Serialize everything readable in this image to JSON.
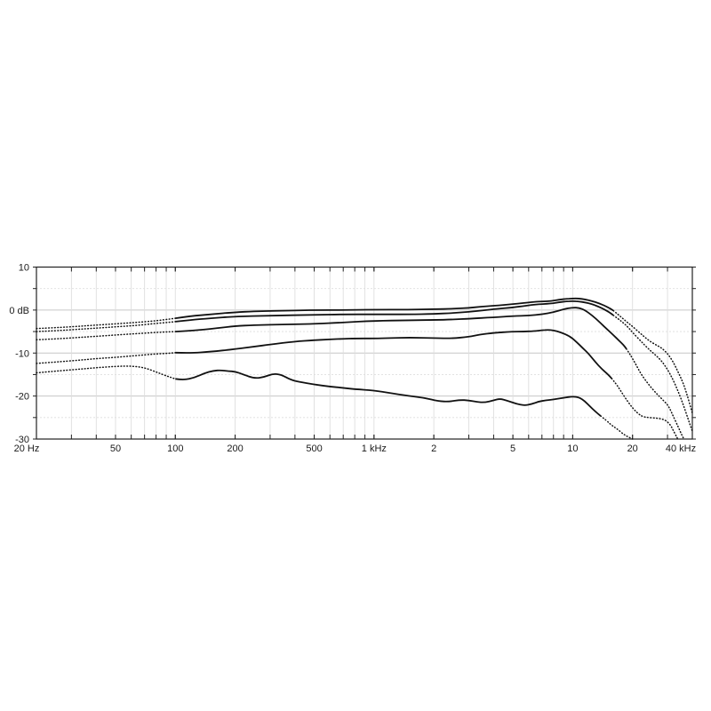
{
  "chart_data": {
    "type": "line",
    "title": "",
    "xlabel": "",
    "ylabel": "",
    "x_axis": {
      "scale": "log",
      "min_hz": 20,
      "max_hz": 40000,
      "ticks": [
        {
          "hz": 20,
          "label": "20 Hz"
        },
        {
          "hz": 50,
          "label": "50"
        },
        {
          "hz": 100,
          "label": "100"
        },
        {
          "hz": 200,
          "label": "200"
        },
        {
          "hz": 500,
          "label": "500"
        },
        {
          "hz": 1000,
          "label": "1 kHz"
        },
        {
          "hz": 2000,
          "label": "2"
        },
        {
          "hz": 5000,
          "label": "5"
        },
        {
          "hz": 10000,
          "label": "10"
        },
        {
          "hz": 20000,
          "label": "20"
        },
        {
          "hz": 40000,
          "label": "40 kHz"
        }
      ]
    },
    "y_axis": {
      "scale": "linear",
      "min_db": -30,
      "max_db": 10,
      "major_ticks": [
        {
          "db": 10,
          "label": "10"
        },
        {
          "db": 0,
          "label": "0 dB"
        },
        {
          "db": -10,
          "label": "-10"
        },
        {
          "db": -20,
          "label": "-20"
        },
        {
          "db": -30,
          "label": "-30"
        }
      ],
      "minor_ticks_db": [
        5,
        -5,
        -15,
        -25
      ]
    },
    "grid": true,
    "legend": "none",
    "line_color": "#111111",
    "grid_major_color": "#c6c6c6",
    "grid_minor_color": "#dedede",
    "note_line_style": "curves are dotted below ~90 Hz and above ~14-19 kHz, solid in between",
    "series": [
      {
        "id": "curve-1",
        "solid_from_hz": 95,
        "solid_to_hz": 16000,
        "points": [
          [
            20,
            -4.3
          ],
          [
            25,
            -4.1
          ],
          [
            32,
            -3.8
          ],
          [
            40,
            -3.5
          ],
          [
            50,
            -3.2
          ],
          [
            63,
            -2.9
          ],
          [
            80,
            -2.5
          ],
          [
            90,
            -2.2
          ],
          [
            100,
            -1.9
          ],
          [
            120,
            -1.4
          ],
          [
            150,
            -1.0
          ],
          [
            200,
            -0.5
          ],
          [
            250,
            -0.3
          ],
          [
            300,
            -0.2
          ],
          [
            400,
            -0.1
          ],
          [
            500,
            0
          ],
          [
            700,
            0
          ],
          [
            1000,
            0.1
          ],
          [
            1500,
            0.1
          ],
          [
            2000,
            0.2
          ],
          [
            2500,
            0.3
          ],
          [
            3000,
            0.5
          ],
          [
            3500,
            0.8
          ],
          [
            4000,
            1.0
          ],
          [
            4500,
            1.2
          ],
          [
            5000,
            1.4
          ],
          [
            5600,
            1.6
          ],
          [
            6400,
            1.9
          ],
          [
            7000,
            2.0
          ],
          [
            7800,
            2.1
          ],
          [
            8500,
            2.4
          ],
          [
            9200,
            2.6
          ],
          [
            10000,
            2.7
          ],
          [
            10700,
            2.7
          ],
          [
            11500,
            2.5
          ],
          [
            12500,
            2.1
          ],
          [
            13500,
            1.6
          ],
          [
            14500,
            1.0
          ],
          [
            15500,
            0.3
          ],
          [
            16000,
            -0.1
          ],
          [
            17000,
            -1.1
          ],
          [
            18000,
            -2.1
          ],
          [
            19000,
            -3.0
          ],
          [
            20000,
            -3.8
          ],
          [
            22000,
            -5.5
          ],
          [
            24000,
            -7.0
          ],
          [
            26000,
            -8.0
          ],
          [
            28000,
            -8.8
          ],
          [
            30000,
            -10.1
          ],
          [
            32000,
            -12.0
          ],
          [
            34000,
            -14.5
          ],
          [
            36000,
            -17.0
          ],
          [
            38000,
            -20.3
          ],
          [
            40000,
            -24.0
          ]
        ]
      },
      {
        "id": "curve-2",
        "solid_from_hz": 95,
        "solid_to_hz": 16000,
        "points": [
          [
            20,
            -5.0
          ],
          [
            25,
            -4.8
          ],
          [
            32,
            -4.5
          ],
          [
            40,
            -4.2
          ],
          [
            50,
            -3.9
          ],
          [
            63,
            -3.6
          ],
          [
            80,
            -3.1
          ],
          [
            90,
            -2.9
          ],
          [
            100,
            -2.7
          ],
          [
            120,
            -2.3
          ],
          [
            150,
            -1.9
          ],
          [
            200,
            -1.5
          ],
          [
            300,
            -1.3
          ],
          [
            500,
            -1.1
          ],
          [
            700,
            -1.0
          ],
          [
            1000,
            -1.0
          ],
          [
            1500,
            -1.0
          ],
          [
            2000,
            -0.9
          ],
          [
            2500,
            -0.7
          ],
          [
            3000,
            -0.4
          ],
          [
            3500,
            -0.1
          ],
          [
            4000,
            0.2
          ],
          [
            5000,
            0.6
          ],
          [
            5600,
            0.9
          ],
          [
            6400,
            1.3
          ],
          [
            7800,
            1.5
          ],
          [
            8500,
            1.8
          ],
          [
            9200,
            2.0
          ],
          [
            10000,
            2.1
          ],
          [
            10700,
            2.0
          ],
          [
            11500,
            1.8
          ],
          [
            12500,
            1.4
          ],
          [
            13500,
            0.8
          ],
          [
            14500,
            0.1
          ],
          [
            15500,
            -0.7
          ],
          [
            16000,
            -1.2
          ],
          [
            17000,
            -2.1
          ],
          [
            18000,
            -3.0
          ],
          [
            19000,
            -4.0
          ],
          [
            20000,
            -5.2
          ],
          [
            22000,
            -7.2
          ],
          [
            24000,
            -9.0
          ],
          [
            26000,
            -10.4
          ],
          [
            28000,
            -11.8
          ],
          [
            30000,
            -13.8
          ],
          [
            32000,
            -16.2
          ],
          [
            34000,
            -19.0
          ],
          [
            36000,
            -22.0
          ],
          [
            38000,
            -25.2
          ],
          [
            40000,
            -28.2
          ]
        ]
      },
      {
        "id": "curve-3",
        "solid_from_hz": 95,
        "solid_to_hz": 18600,
        "points": [
          [
            20,
            -6.9
          ],
          [
            25,
            -6.7
          ],
          [
            32,
            -6.4
          ],
          [
            40,
            -6.1
          ],
          [
            50,
            -5.8
          ],
          [
            63,
            -5.5
          ],
          [
            80,
            -5.2
          ],
          [
            90,
            -5.1
          ],
          [
            100,
            -5.0
          ],
          [
            120,
            -4.8
          ],
          [
            150,
            -4.4
          ],
          [
            200,
            -3.7
          ],
          [
            250,
            -3.5
          ],
          [
            300,
            -3.4
          ],
          [
            400,
            -3.3
          ],
          [
            500,
            -3.2
          ],
          [
            700,
            -2.9
          ],
          [
            1000,
            -2.5
          ],
          [
            1500,
            -2.4
          ],
          [
            2000,
            -2.3
          ],
          [
            2500,
            -2.2
          ],
          [
            3000,
            -2.0
          ],
          [
            4000,
            -1.7
          ],
          [
            5000,
            -1.4
          ],
          [
            6000,
            -1.3
          ],
          [
            7000,
            -1.0
          ],
          [
            8000,
            -0.5
          ],
          [
            9000,
            0.2
          ],
          [
            10000,
            0.6
          ],
          [
            10800,
            0.5
          ],
          [
            11500,
            0
          ],
          [
            12500,
            -1.2
          ],
          [
            13800,
            -3.0
          ],
          [
            15000,
            -4.6
          ],
          [
            16000,
            -5.8
          ],
          [
            17000,
            -7.0
          ],
          [
            18000,
            -8.1
          ],
          [
            18600,
            -9.0
          ],
          [
            19300,
            -10.1
          ],
          [
            20000,
            -11.3
          ],
          [
            21000,
            -13.0
          ],
          [
            22000,
            -14.8
          ],
          [
            24000,
            -17.2
          ],
          [
            26000,
            -19.1
          ],
          [
            28000,
            -20.6
          ],
          [
            30000,
            -22.0
          ],
          [
            31000,
            -23.2
          ],
          [
            32000,
            -24.6
          ],
          [
            34000,
            -27.2
          ],
          [
            35500,
            -29.2
          ],
          [
            36300,
            -30
          ]
        ]
      },
      {
        "id": "curve-4",
        "solid_from_hz": 95,
        "solid_to_hz": 15700,
        "points": [
          [
            20,
            -12.4
          ],
          [
            25,
            -12.1
          ],
          [
            32,
            -11.7
          ],
          [
            40,
            -11.3
          ],
          [
            50,
            -11.0
          ],
          [
            63,
            -10.6
          ],
          [
            80,
            -10.2
          ],
          [
            90,
            -10.1
          ],
          [
            100,
            -9.9
          ],
          [
            120,
            -10.0
          ],
          [
            150,
            -9.7
          ],
          [
            200,
            -9.1
          ],
          [
            250,
            -8.5
          ],
          [
            300,
            -8.0
          ],
          [
            400,
            -7.3
          ],
          [
            500,
            -7.0
          ],
          [
            600,
            -6.8
          ],
          [
            700,
            -6.7
          ],
          [
            800,
            -6.6
          ],
          [
            1000,
            -6.6
          ],
          [
            1200,
            -6.5
          ],
          [
            1500,
            -6.4
          ],
          [
            2000,
            -6.5
          ],
          [
            2500,
            -6.6
          ],
          [
            3000,
            -6.2
          ],
          [
            3400,
            -5.7
          ],
          [
            4000,
            -5.3
          ],
          [
            5000,
            -5.0
          ],
          [
            5600,
            -5.0
          ],
          [
            6400,
            -4.9
          ],
          [
            7000,
            -4.7
          ],
          [
            7500,
            -4.6
          ],
          [
            8000,
            -4.7
          ],
          [
            8700,
            -5.2
          ],
          [
            9700,
            -6.1
          ],
          [
            10500,
            -7.5
          ],
          [
            11200,
            -8.8
          ],
          [
            12000,
            -10.1
          ],
          [
            13000,
            -12.1
          ],
          [
            14000,
            -13.7
          ],
          [
            15000,
            -14.9
          ],
          [
            15700,
            -15.9
          ],
          [
            16500,
            -17.1
          ],
          [
            17500,
            -18.9
          ],
          [
            18500,
            -20.6
          ],
          [
            19500,
            -22.1
          ],
          [
            20500,
            -23.3
          ],
          [
            21500,
            -24.2
          ],
          [
            22500,
            -24.8
          ],
          [
            24000,
            -25.0
          ],
          [
            26000,
            -25.1
          ],
          [
            28000,
            -25.3
          ],
          [
            29500,
            -25.7
          ],
          [
            31000,
            -26.7
          ],
          [
            32000,
            -27.9
          ],
          [
            33000,
            -29.1
          ],
          [
            33800,
            -30
          ]
        ]
      },
      {
        "id": "curve-5",
        "solid_from_hz": 95,
        "solid_to_hz": 13800,
        "points": [
          [
            20,
            -14.6
          ],
          [
            25,
            -14.2
          ],
          [
            32,
            -13.8
          ],
          [
            40,
            -13.4
          ],
          [
            50,
            -13.1
          ],
          [
            60,
            -13.0
          ],
          [
            70,
            -13.4
          ],
          [
            80,
            -14.4
          ],
          [
            90,
            -15.3
          ],
          [
            100,
            -16.0
          ],
          [
            110,
            -16.3
          ],
          [
            125,
            -15.7
          ],
          [
            140,
            -14.7
          ],
          [
            155,
            -14.1
          ],
          [
            170,
            -14.0
          ],
          [
            185,
            -14.2
          ],
          [
            200,
            -14.3
          ],
          [
            220,
            -15.0
          ],
          [
            250,
            -15.9
          ],
          [
            280,
            -15.6
          ],
          [
            310,
            -14.8
          ],
          [
            340,
            -15.0
          ],
          [
            380,
            -16.2
          ],
          [
            420,
            -16.7
          ],
          [
            500,
            -17.3
          ],
          [
            600,
            -17.8
          ],
          [
            700,
            -18.1
          ],
          [
            800,
            -18.4
          ],
          [
            1000,
            -18.7
          ],
          [
            1200,
            -19.3
          ],
          [
            1500,
            -20.0
          ],
          [
            1800,
            -20.4
          ],
          [
            2100,
            -21.2
          ],
          [
            2400,
            -21.3
          ],
          [
            2700,
            -20.9
          ],
          [
            3000,
            -21.0
          ],
          [
            3300,
            -21.4
          ],
          [
            3600,
            -21.5
          ],
          [
            4000,
            -21.0
          ],
          [
            4300,
            -20.6
          ],
          [
            4700,
            -21.1
          ],
          [
            5200,
            -21.8
          ],
          [
            5700,
            -22.2
          ],
          [
            6200,
            -21.9
          ],
          [
            6700,
            -21.3
          ],
          [
            7300,
            -21.0
          ],
          [
            8000,
            -20.8
          ],
          [
            9000,
            -20.4
          ],
          [
            10000,
            -20.1
          ],
          [
            10800,
            -20.3
          ],
          [
            11500,
            -21.2
          ],
          [
            12200,
            -22.4
          ],
          [
            13000,
            -23.6
          ],
          [
            13800,
            -24.6
          ],
          [
            14800,
            -25.7
          ],
          [
            15800,
            -26.9
          ],
          [
            16800,
            -27.7
          ],
          [
            17800,
            -28.7
          ],
          [
            18800,
            -29.4
          ],
          [
            20000,
            -30
          ]
        ]
      }
    ]
  }
}
